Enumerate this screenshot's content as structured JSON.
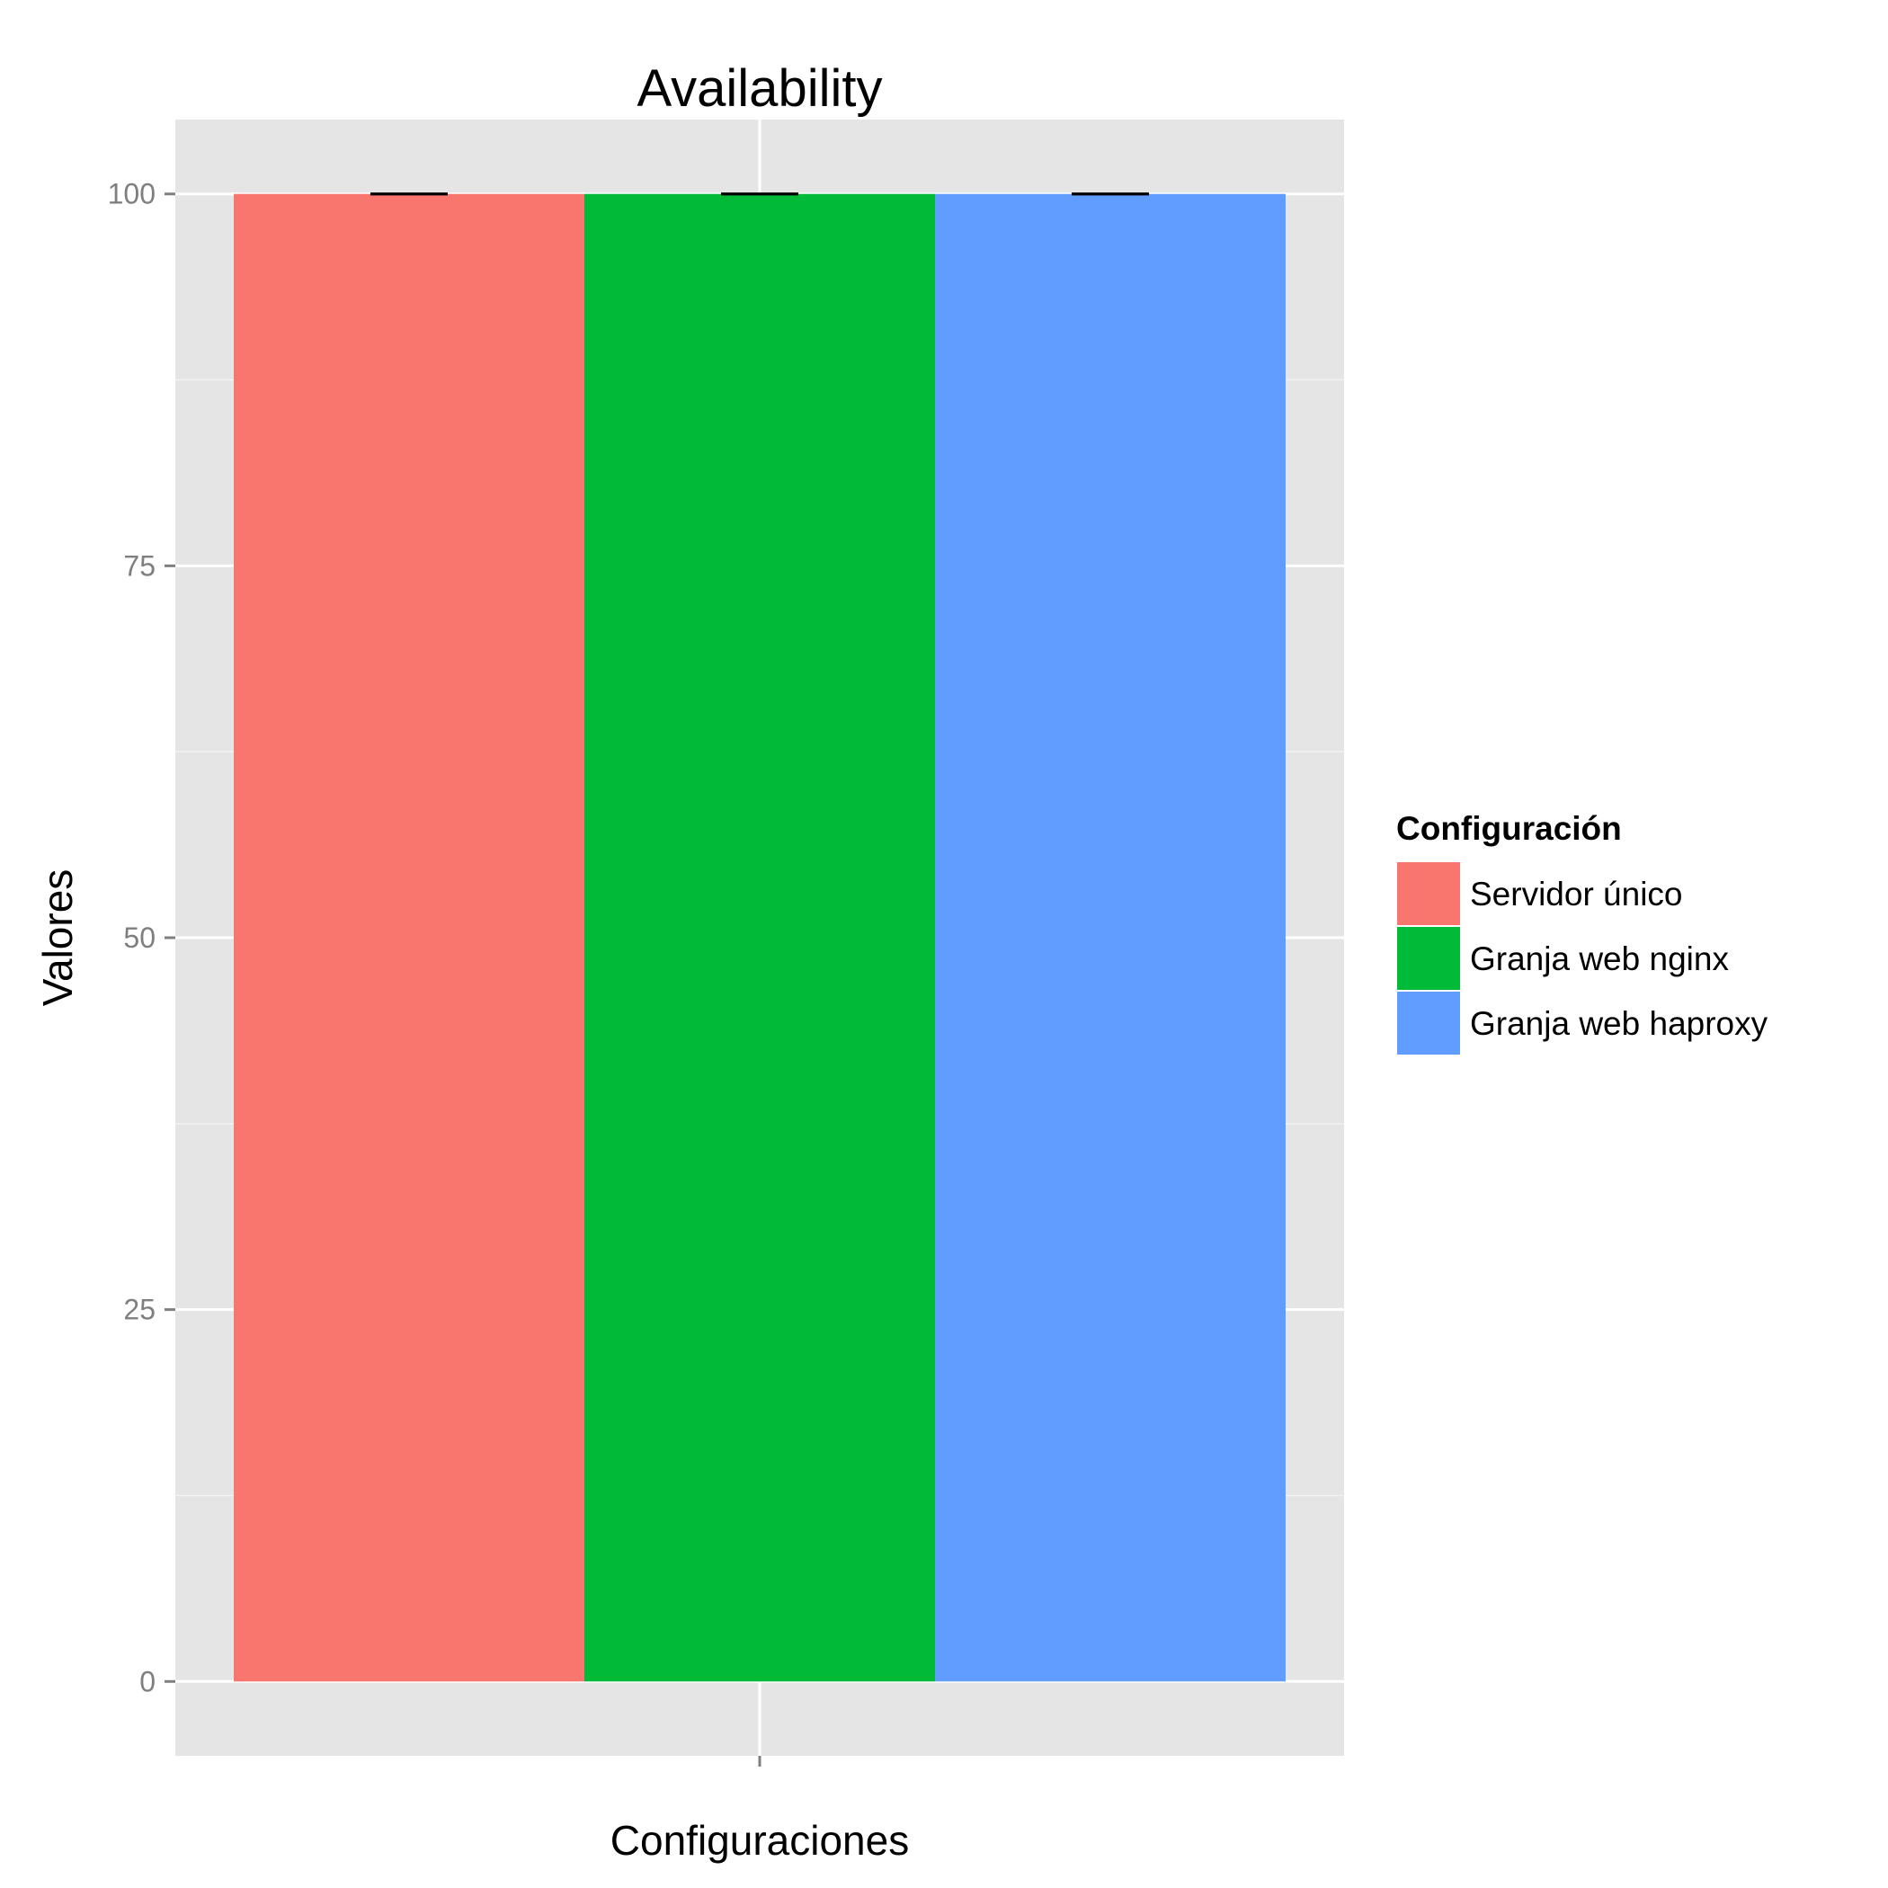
{
  "chart_data": {
    "type": "bar",
    "title": "Availability",
    "xlabel": "Configuraciones",
    "ylabel": "Valores",
    "ylim": [
      -5,
      105
    ],
    "yticks": [
      0,
      25,
      50,
      75,
      100
    ],
    "grid": true,
    "legend_position": "right",
    "legend_title": "Configuración",
    "series": [
      {
        "name": "Servidor único",
        "value": 100,
        "error": [
          100,
          100
        ],
        "color": "#F8766D"
      },
      {
        "name": "Granja web nginx",
        "value": 100,
        "error": [
          100,
          100
        ],
        "color": "#00BA38"
      },
      {
        "name": "Granja web haproxy",
        "value": 100,
        "error": [
          100,
          100
        ],
        "color": "#619CFF"
      }
    ]
  }
}
